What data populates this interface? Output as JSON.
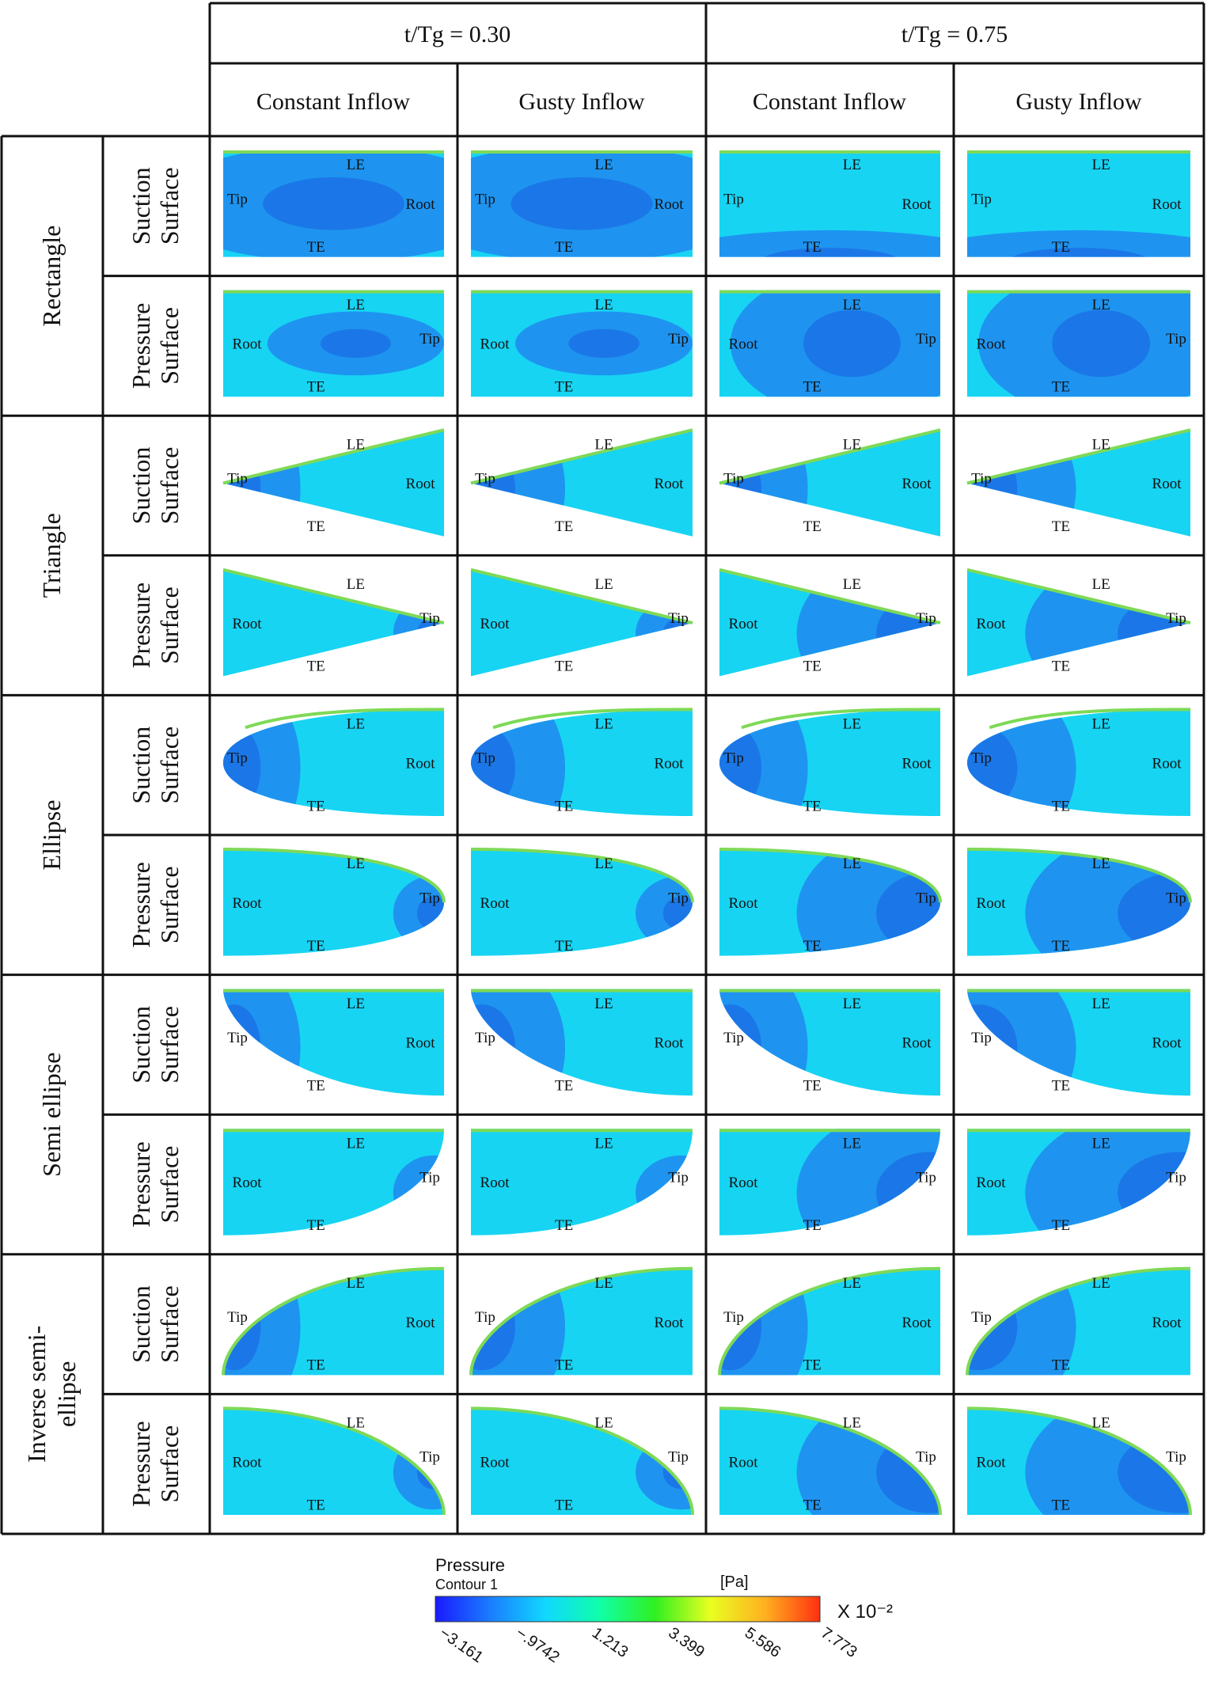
{
  "column_headers": {
    "time_groups": [
      "t/Tg = 0.30",
      "t/Tg = 0.75"
    ],
    "inflow": [
      "Constant Inflow",
      "Gusty Inflow",
      "Constant Inflow",
      "Gusty Inflow"
    ]
  },
  "shapes": [
    {
      "name": "Rectangle",
      "lines": [
        "Rectangle"
      ],
      "kind": "rect"
    },
    {
      "name": "Triangle",
      "lines": [
        "Triangle"
      ],
      "kind": "tri"
    },
    {
      "name": "Ellipse",
      "lines": [
        "Ellipse"
      ],
      "kind": "ell"
    },
    {
      "name": "Semi ellipse",
      "lines": [
        "Semi ellipse"
      ],
      "kind": "semi"
    },
    {
      "name": "Inverse semi-ellipse",
      "lines": [
        "Inverse semi-",
        "ellipse"
      ],
      "kind": "inv"
    }
  ],
  "surfaces": [
    {
      "key": "suction",
      "lines": [
        "Suction",
        "Surface"
      ]
    },
    {
      "key": "pressure",
      "lines": [
        "Pressure",
        "Surface"
      ]
    }
  ],
  "panel_labels": {
    "le": "LE",
    "te": "TE",
    "tip": "Tip",
    "root": "Root"
  },
  "colors": {
    "base_cyan": "#17d4f3",
    "low_pressure_blue": "#1f8df0",
    "deep_blue": "#1a5fe0",
    "leading_edge_green": "#7ed957",
    "grid_line": "#111111"
  },
  "colorbar": {
    "title": "Pressure",
    "subtitle": "Contour 1",
    "unit": "[Pa]",
    "multiplier": "X 10⁻²",
    "ticks": [
      "−3.161",
      "−.9742",
      "1.213",
      "3.399",
      "5.586",
      "7.773"
    ],
    "stops": [
      "#1a1aff",
      "#1a7dff",
      "#10d8ff",
      "#10ffa8",
      "#2ff020",
      "#e8ff20",
      "#ffb020",
      "#ff3010"
    ]
  }
}
